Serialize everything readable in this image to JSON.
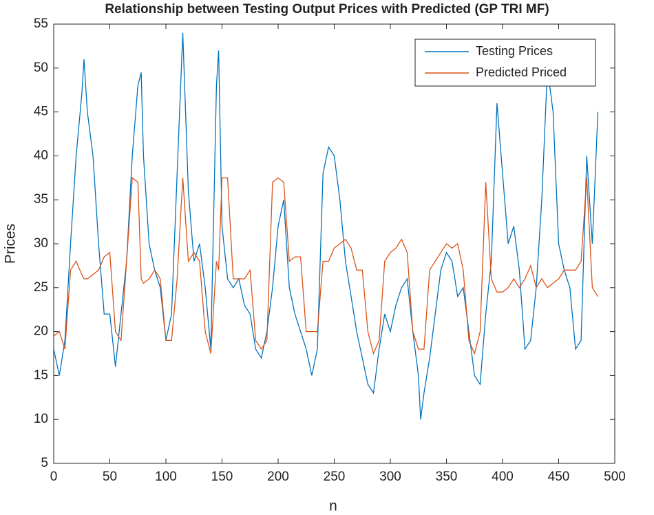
{
  "chart_data": {
    "type": "line",
    "title": "Relationship between Testing Output Prices with Predicted (GP TRI MF)",
    "xlabel": "n",
    "ylabel": "Prices",
    "xlim": [
      0,
      500
    ],
    "ylim": [
      5,
      55
    ],
    "xticks": [
      0,
      50,
      100,
      150,
      200,
      250,
      300,
      350,
      400,
      450,
      500
    ],
    "yticks": [
      5,
      10,
      15,
      20,
      25,
      30,
      35,
      40,
      45,
      50,
      55
    ],
    "legend": "top-right",
    "x": [
      0,
      5,
      10,
      15,
      20,
      25,
      27,
      30,
      35,
      40,
      45,
      50,
      55,
      60,
      65,
      70,
      75,
      78,
      80,
      85,
      90,
      95,
      100,
      105,
      110,
      115,
      120,
      125,
      130,
      135,
      140,
      145,
      147,
      150,
      155,
      160,
      165,
      170,
      175,
      180,
      185,
      190,
      195,
      200,
      205,
      210,
      215,
      220,
      225,
      230,
      235,
      240,
      245,
      250,
      255,
      260,
      265,
      270,
      275,
      280,
      285,
      290,
      295,
      300,
      305,
      310,
      315,
      320,
      325,
      327,
      330,
      335,
      340,
      345,
      350,
      355,
      360,
      365,
      370,
      375,
      380,
      385,
      390,
      395,
      400,
      405,
      410,
      415,
      420,
      425,
      430,
      435,
      440,
      445,
      450,
      455,
      460,
      465,
      470,
      475,
      480,
      485
    ],
    "series": [
      {
        "name": "Testing Prices",
        "color": "#0072bd",
        "values": [
          18,
          15,
          19,
          30,
          40,
          47,
          51,
          45,
          40,
          30,
          22,
          22,
          16,
          22,
          28,
          40,
          48,
          49.5,
          40,
          30,
          27,
          25,
          19,
          22,
          38,
          54,
          36,
          28,
          30,
          25,
          18,
          48,
          52,
          32,
          26,
          25,
          26,
          23,
          22,
          18,
          17,
          20,
          25,
          32,
          35,
          25,
          22,
          20,
          18,
          15,
          18,
          38,
          41,
          40,
          35,
          28,
          24,
          20,
          17,
          14,
          13,
          18,
          22,
          20,
          23,
          25,
          26,
          20,
          15,
          10,
          13,
          17,
          22,
          27,
          29,
          28,
          24,
          25,
          20,
          15,
          14,
          22,
          28,
          46,
          38,
          30,
          32,
          27,
          18,
          19,
          25,
          35,
          50,
          45,
          30,
          27,
          25,
          18,
          19,
          40,
          30,
          45
        ]
      },
      {
        "name": "Predicted Priced",
        "color": "#d95319",
        "values": [
          19.5,
          20,
          18,
          27,
          28,
          26.5,
          26,
          26,
          26.5,
          27,
          28.5,
          29,
          20,
          19,
          28,
          37.5,
          37,
          26,
          25.5,
          26,
          27,
          26,
          19,
          19,
          26,
          37.5,
          28,
          29,
          28,
          20,
          17.5,
          28,
          27,
          37.5,
          37.5,
          26,
          26,
          26,
          27,
          19,
          18,
          19,
          37,
          37.5,
          37,
          28,
          28.5,
          28.5,
          20,
          20,
          20,
          28,
          28,
          29.5,
          30,
          30.5,
          29.5,
          27,
          27,
          20,
          17.5,
          19,
          28,
          29,
          29.5,
          30.5,
          29,
          20,
          18,
          18,
          18,
          27,
          28,
          29,
          30,
          29.5,
          30,
          27,
          19,
          17.5,
          20,
          37,
          26,
          24.5,
          24.5,
          25,
          26,
          25,
          26,
          27.5,
          25,
          26,
          25,
          25.5,
          26,
          27,
          27,
          27,
          28,
          37.5,
          25,
          24
        ]
      }
    ]
  }
}
